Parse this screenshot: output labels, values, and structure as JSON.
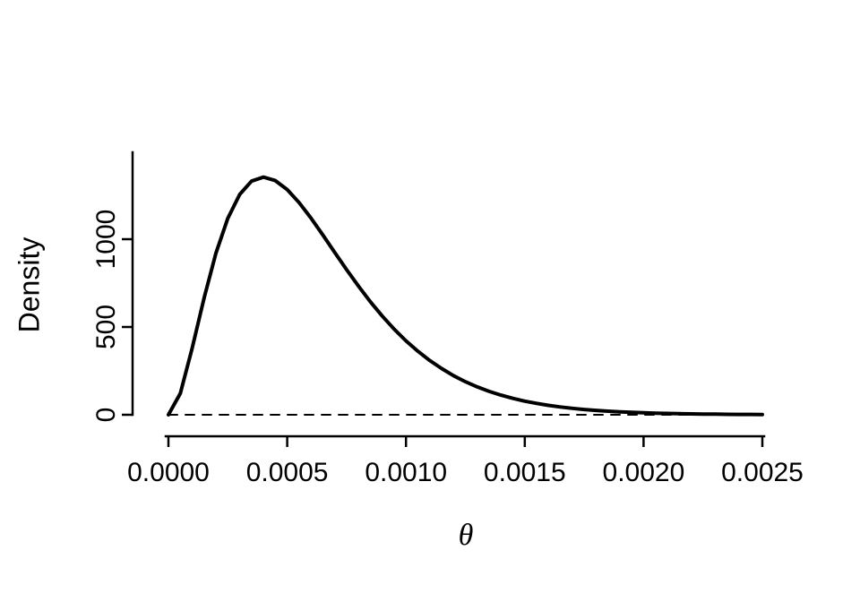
{
  "chart_data": {
    "type": "line",
    "title": "",
    "xlabel": "θ",
    "ylabel": "Density",
    "xlim": [
      0,
      0.0025
    ],
    "ylim": [
      0,
      1456
    ],
    "grid": false,
    "background": "#ffffff",
    "line_color": "#000000",
    "x_ticks": {
      "values": [
        0.0,
        0.0005,
        0.001,
        0.0015,
        0.002,
        0.0025
      ],
      "labels": [
        "0.0000",
        "0.0005",
        "0.0010",
        "0.0015",
        "0.0020",
        "0.0025"
      ]
    },
    "y_ticks": {
      "values": [
        0,
        500,
        1000
      ],
      "labels": [
        "0",
        "500",
        "1000"
      ]
    },
    "series": [
      {
        "name": "density-curve",
        "style": "solid",
        "color": "#000000",
        "x": [
          0,
          5e-05,
          0.0001,
          0.00015,
          0.0002,
          0.00025,
          0.0003,
          0.00035,
          0.0004,
          0.00045,
          0.0005,
          0.00055,
          0.0006,
          0.00065,
          0.0007,
          0.00075,
          0.0008,
          0.00085,
          0.0009,
          0.00095,
          0.001,
          0.00105,
          0.0011,
          0.00115,
          0.0012,
          0.00125,
          0.0013,
          0.00135,
          0.0014,
          0.00145,
          0.0015,
          0.00155,
          0.0016,
          0.00165,
          0.0017,
          0.00175,
          0.0018,
          0.00185,
          0.0019,
          0.00195,
          0.002,
          0.00205,
          0.0021,
          0.00215,
          0.0022,
          0.00225,
          0.0023,
          0.00235,
          0.0024,
          0.00245,
          0.0025
        ],
        "y": [
          0,
          121.7,
          379.1,
          664.2,
          919.7,
          1119.1,
          1255.1,
          1330.5,
          1353.4,
          1333.7,
          1282.8,
          1208.1,
          1120.4,
          1023.8,
          924.8,
          826.7,
          732.6,
          644.1,
          562.4,
          488.1,
          421.1,
          361.6,
          309.1,
          263.1,
          223.1,
          188.5,
          158.8,
          133.4,
          111.7,
          93.3,
          77.8,
          64.7,
          53.7,
          44.5,
          36.8,
          30.3,
          25.0,
          20.6,
          16.9,
          13.9,
          11.3,
          9.3,
          7.6,
          6.2,
          5.1,
          4.1,
          3.4,
          2.7,
          2.2,
          1.8,
          1.5
        ]
      },
      {
        "name": "zero-reference-line",
        "style": "dashed",
        "color": "#000000",
        "x": [
          0,
          0.0025
        ],
        "y": [
          0,
          0
        ]
      }
    ]
  }
}
